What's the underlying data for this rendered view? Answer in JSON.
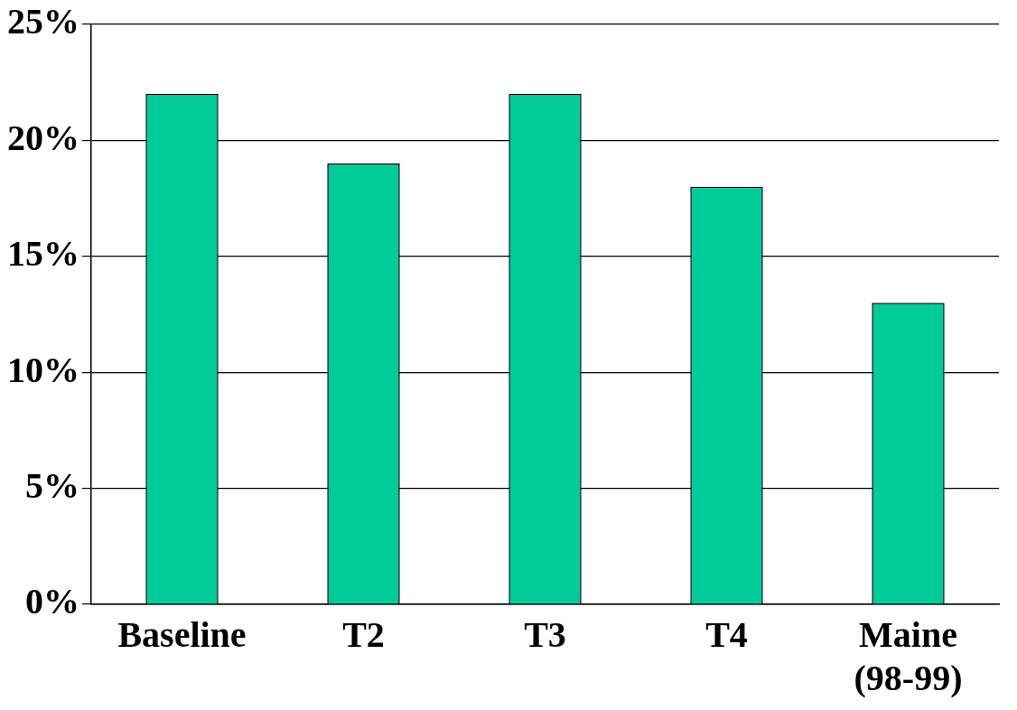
{
  "chart_data": {
    "type": "bar",
    "categories": [
      "Baseline",
      "T2",
      "T3",
      "T4",
      "Maine (98-99)"
    ],
    "values": [
      22,
      19,
      22,
      18,
      13
    ],
    "color": "#00cc99",
    "ylim": [
      0,
      25
    ],
    "yticks": [
      {
        "value": 0,
        "label": "0%"
      },
      {
        "value": 5,
        "label": "5%"
      },
      {
        "value": 10,
        "label": "10%"
      },
      {
        "value": 15,
        "label": "15%"
      },
      {
        "value": 20,
        "label": "20%"
      },
      {
        "value": 25,
        "label": "25%"
      }
    ],
    "grid": "y",
    "legend": false
  }
}
